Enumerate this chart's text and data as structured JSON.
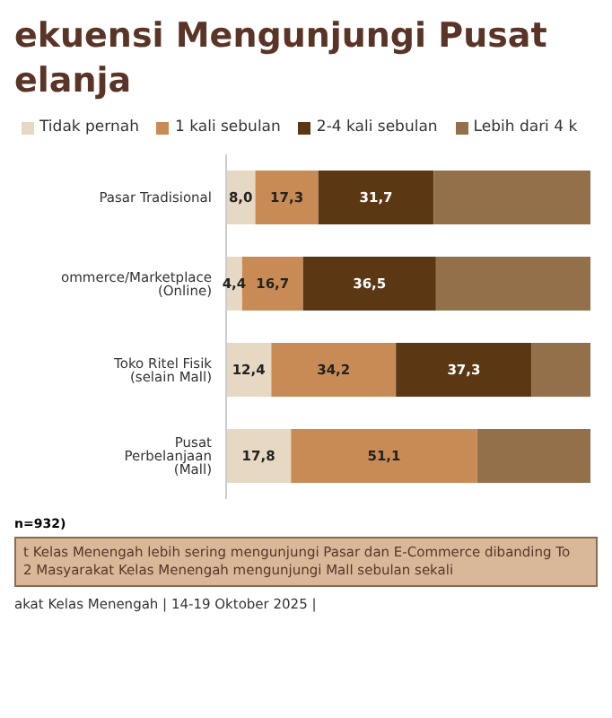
{
  "chart_data": {
    "type": "bar",
    "orientation": "horizontal",
    "stacked": true,
    "title": "ekuensi Mengunjungi Pusat\nelanja",
    "categories": [
      "Pasar Tradisional",
      "ommerce/Marketplace (Online)",
      "Toko Ritel Fisik (selain Mall)",
      "Pusat Perbelanjaan (Mall)"
    ],
    "series": [
      {
        "name": "Tidak pernah",
        "color": "#e6d8c3",
        "values": [
          8.0,
          4.4,
          12.4,
          17.8
        ],
        "value_labels": [
          "8,0",
          "4,4",
          "12,4",
          "17,8"
        ]
      },
      {
        "name": "1 kali sebulan",
        "color": "#c98b55",
        "values": [
          17.3,
          16.7,
          34.2,
          51.1
        ],
        "value_labels": [
          "17,3",
          "16,7",
          "34,2",
          "51,1"
        ]
      },
      {
        "name": "2-4 kali sebulan",
        "color": "#5c3714",
        "values": [
          31.7,
          36.5,
          37.3,
          null
        ],
        "value_labels": [
          "31,7",
          "36,5",
          "37,3",
          null
        ]
      },
      {
        "name": "Lebih dari 4 k",
        "color": "#93704a",
        "values": [
          43.0,
          42.4,
          16.1,
          31.1
        ],
        "value_labels": [
          null,
          null,
          null,
          null
        ]
      }
    ],
    "legend": "top",
    "grid": false,
    "annotations": [
      "n=932)",
      "t Kelas Menengah lebih sering mengunjungi Pasar dan E-Commerce dibanding To",
      "2 Masyarakat Kelas Menengah mengunjungi Mall sebulan sekali",
      "akat Kelas Menengah | 14-19 Oktober 2025 |"
    ]
  }
}
